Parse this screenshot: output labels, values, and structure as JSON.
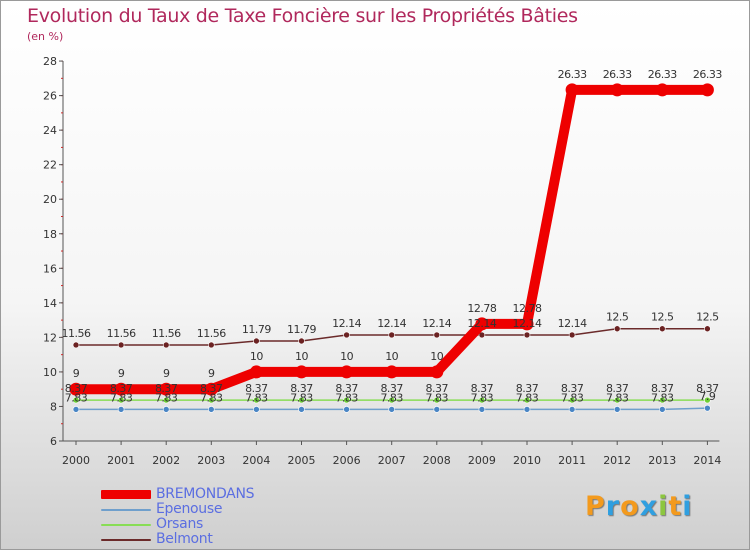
{
  "title": "Evolution du Taux de Taxe Foncière sur les Propriétés Bâties",
  "unit": "(en %)",
  "logo": {
    "letters": [
      "P",
      "r",
      "o",
      "x",
      "i",
      "t",
      "i"
    ],
    "colors": [
      "#f39a1d",
      "#2f9fe0",
      "#f39a1d",
      "#2f9fe0",
      "#8cc63f",
      "#f39a1d",
      "#2f9fe0"
    ]
  },
  "chart_data": {
    "type": "line",
    "title": "Evolution du Taux de Taxe Foncière sur les Propriétés Bâties",
    "ylabel": "(en %)",
    "xlabel": "",
    "categories": [
      "2000",
      "2001",
      "2002",
      "2003",
      "2004",
      "2005",
      "2006",
      "2007",
      "2008",
      "2009",
      "2010",
      "2011",
      "2012",
      "2013",
      "2014"
    ],
    "ylim": [
      6,
      28
    ],
    "yticks": [
      "6",
      "8",
      "10",
      "12",
      "14",
      "16",
      "18",
      "20",
      "22",
      "24",
      "26",
      "28"
    ],
    "series": [
      {
        "name": "BREMONDANS",
        "color": "#ee0000",
        "marker": "#ee0000",
        "width": "thick",
        "show_labels": true,
        "values": [
          9,
          9,
          9,
          9,
          10,
          10,
          10,
          10,
          10,
          12.78,
          12.78,
          26.33,
          26.33,
          26.33,
          26.33
        ],
        "labels": [
          "9",
          "9",
          "9",
          "9",
          "10",
          "10",
          "10",
          "10",
          "10",
          "12.78",
          "12.78",
          "26.33",
          "26.33",
          "26.33",
          "26.33"
        ]
      },
      {
        "name": "Epenouse",
        "color": "#6f9fcc",
        "marker": "#4a86c5",
        "width": "thin",
        "show_labels": true,
        "values": [
          7.83,
          7.83,
          7.83,
          7.83,
          7.83,
          7.83,
          7.83,
          7.83,
          7.83,
          7.83,
          7.83,
          7.83,
          7.83,
          7.83,
          7.9
        ],
        "labels": [
          "7.83",
          "7.83",
          "7.83",
          "7.83",
          "7.83",
          "7.83",
          "7.83",
          "7.83",
          "7.83",
          "7.83",
          "7.83",
          "7.83",
          "7.83",
          "7.83",
          "7.9"
        ]
      },
      {
        "name": "Orsans",
        "color": "#88dd55",
        "marker": "#6ccf35",
        "width": "thin",
        "show_labels": true,
        "values": [
          8.37,
          8.37,
          8.37,
          8.37,
          8.37,
          8.37,
          8.37,
          8.37,
          8.37,
          8.37,
          8.37,
          8.37,
          8.37,
          8.37,
          8.37
        ],
        "labels": [
          "8.37",
          "8.37",
          "8.37",
          "8.37",
          "8.37",
          "8.37",
          "8.37",
          "8.37",
          "8.37",
          "8.37",
          "8.37",
          "8.37",
          "8.37",
          "8.37",
          "8.37"
        ]
      },
      {
        "name": "Belmont",
        "color": "#6b2a2a",
        "marker": "#6b2222",
        "width": "thin",
        "show_labels": true,
        "values": [
          11.56,
          11.56,
          11.56,
          11.56,
          11.79,
          11.79,
          12.14,
          12.14,
          12.14,
          12.14,
          12.14,
          12.14,
          12.5,
          12.5,
          12.5
        ],
        "labels": [
          "11.56",
          "11.56",
          "11.56",
          "11.56",
          "11.79",
          "11.79",
          "12.14",
          "12.14",
          "12.14",
          "12.14",
          "12.14",
          "12.14",
          "12.5",
          "12.5",
          "12.5"
        ]
      }
    ],
    "legend_position": "bottom-left",
    "grid": false
  }
}
